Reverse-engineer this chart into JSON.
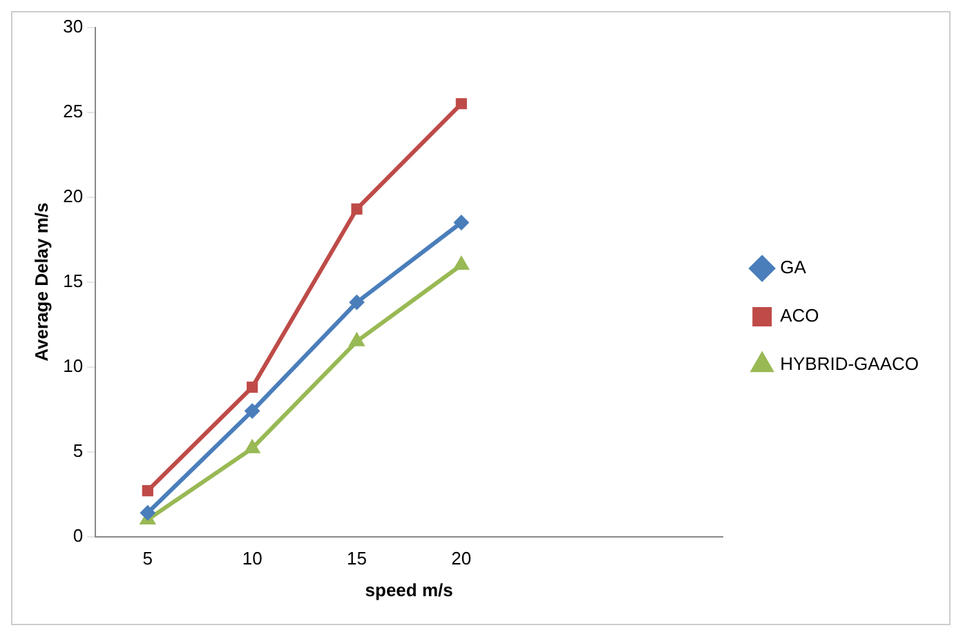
{
  "chart_data": {
    "type": "line",
    "xlabel": "speed m/s",
    "ylabel": "Average Delay m/s",
    "categories": [
      "5",
      "10",
      "15",
      "20",
      null,
      null
    ],
    "series": [
      {
        "name": "GA",
        "color": "#4a7ebb",
        "marker": "diamond",
        "values": [
          1.4,
          7.4,
          13.8,
          18.5,
          null,
          null
        ]
      },
      {
        "name": "ACO",
        "color": "#be4b48",
        "marker": "square",
        "values": [
          2.7,
          8.8,
          19.3,
          25.5,
          null,
          null
        ]
      },
      {
        "name": "HYBRID-GAACO",
        "color": "#98b954",
        "marker": "triangle",
        "values": [
          1.0,
          5.2,
          11.5,
          16.0,
          null,
          null
        ]
      }
    ],
    "ylim": [
      0,
      30
    ],
    "yticks": [
      0,
      5,
      10,
      15,
      20,
      25,
      30
    ],
    "grid": false,
    "legend": "right"
  }
}
